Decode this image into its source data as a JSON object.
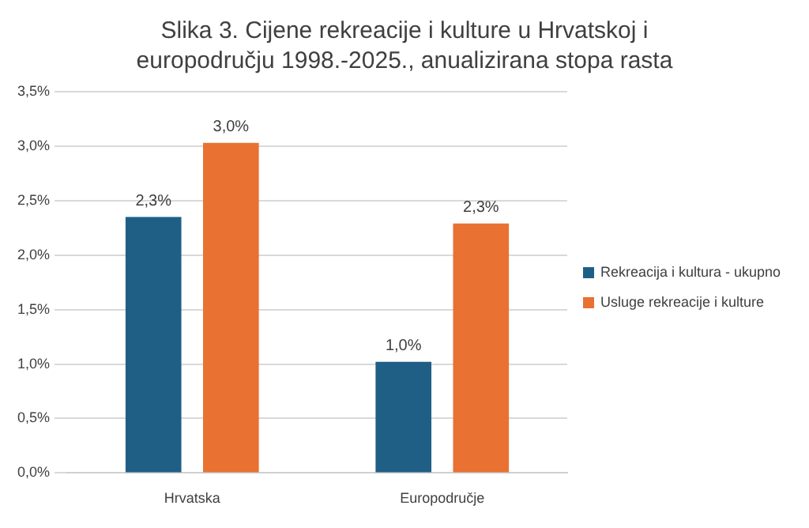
{
  "chart_data": {
    "type": "bar",
    "title": "Slika 3. Cijene rekreacije i kulture u Hrvatskoj i europodručju 1998.-2025., anualizirana stopa rasta",
    "categories": [
      "Hrvatska",
      "Europodručje"
    ],
    "series": [
      {
        "name": "Rekreacija i kultura - ukupno",
        "color": "#1f5f86",
        "values": [
          2.35,
          1.02
        ],
        "value_labels": [
          "2,3%",
          "1,0%"
        ]
      },
      {
        "name": "Usluge rekreacije i kulture",
        "color": "#e97132",
        "values": [
          3.03,
          2.29
        ],
        "value_labels": [
          "3,0%",
          "2,3%"
        ]
      }
    ],
    "ylim": [
      0,
      3.5
    ],
    "yticks": [
      {
        "value": 0,
        "label": "0,0%"
      },
      {
        "value": 0.5,
        "label": "0,5%"
      },
      {
        "value": 1,
        "label": "1,0%"
      },
      {
        "value": 1.5,
        "label": "1,5%"
      },
      {
        "value": 2,
        "label": "2,0%"
      },
      {
        "value": 2.5,
        "label": "2,5%"
      },
      {
        "value": 3,
        "label": "3,0%"
      },
      {
        "value": 3.5,
        "label": "3,5%"
      }
    ],
    "grid": "y",
    "legend": "right"
  }
}
